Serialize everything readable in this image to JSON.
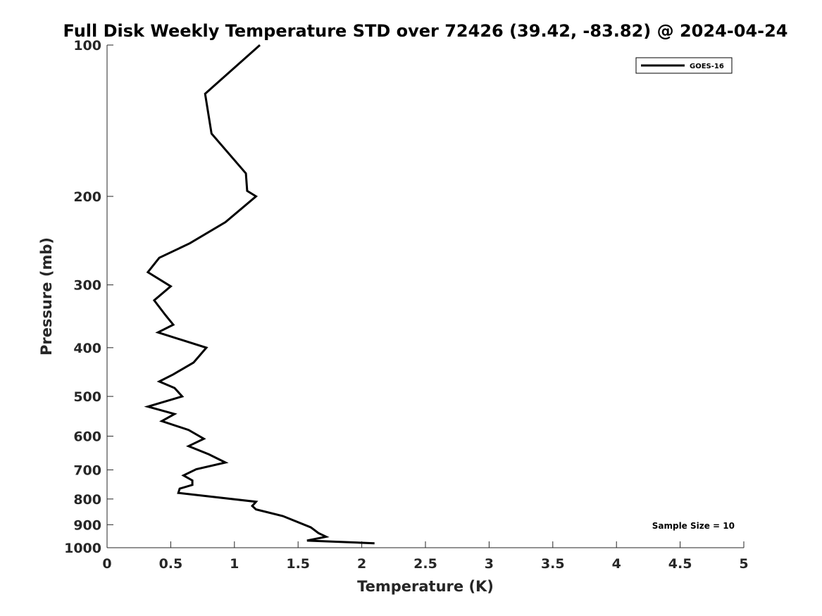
{
  "chart_data": {
    "type": "line",
    "title": "Full Disk Weekly Temperature STD over 72426 (39.42, -83.82) @ 2024-04-24",
    "xlabel": "Temperature (K)",
    "ylabel": "Pressure (mb)",
    "xlim": [
      0,
      5
    ],
    "ylim": [
      100,
      1000
    ],
    "y_scale": "log",
    "y_reversed": true,
    "grid": false,
    "legend_position": "top-right",
    "x_ticks": [
      "0",
      "0.5",
      "1",
      "1.5",
      "2",
      "2.5",
      "3",
      "3.5",
      "4",
      "4.5",
      "5"
    ],
    "y_ticks": [
      "100",
      "200",
      "300",
      "400",
      "500",
      "600",
      "700",
      "800",
      "900",
      "1000"
    ],
    "series": [
      {
        "name": "GOES-16",
        "color": "#000000",
        "points": [
          [
            1.2,
            100
          ],
          [
            0.77,
            125
          ],
          [
            0.82,
            150
          ],
          [
            1.09,
            180
          ],
          [
            1.1,
            195
          ],
          [
            1.17,
            200
          ],
          [
            0.93,
            225
          ],
          [
            0.65,
            248
          ],
          [
            0.41,
            265
          ],
          [
            0.32,
            283
          ],
          [
            0.5,
            302
          ],
          [
            0.37,
            322
          ],
          [
            0.46,
            345
          ],
          [
            0.52,
            360
          ],
          [
            0.4,
            373
          ],
          [
            0.78,
            400
          ],
          [
            0.68,
            428
          ],
          [
            0.52,
            452
          ],
          [
            0.41,
            467
          ],
          [
            0.53,
            481
          ],
          [
            0.59,
            500
          ],
          [
            0.32,
            524
          ],
          [
            0.53,
            542
          ],
          [
            0.43,
            560
          ],
          [
            0.64,
            583
          ],
          [
            0.76,
            607
          ],
          [
            0.64,
            628
          ],
          [
            0.8,
            652
          ],
          [
            0.93,
            677
          ],
          [
            0.7,
            698
          ],
          [
            0.6,
            718
          ],
          [
            0.67,
            735
          ],
          [
            0.67,
            750
          ],
          [
            0.57,
            763
          ],
          [
            0.56,
            778
          ],
          [
            1.17,
            810
          ],
          [
            1.14,
            826
          ],
          [
            1.17,
            839
          ],
          [
            1.38,
            865
          ],
          [
            1.6,
            911
          ],
          [
            1.66,
            935
          ],
          [
            1.72,
            951
          ],
          [
            1.57,
            968
          ],
          [
            2.1,
            980
          ]
        ]
      }
    ],
    "annotation": "Sample Size = 10"
  }
}
